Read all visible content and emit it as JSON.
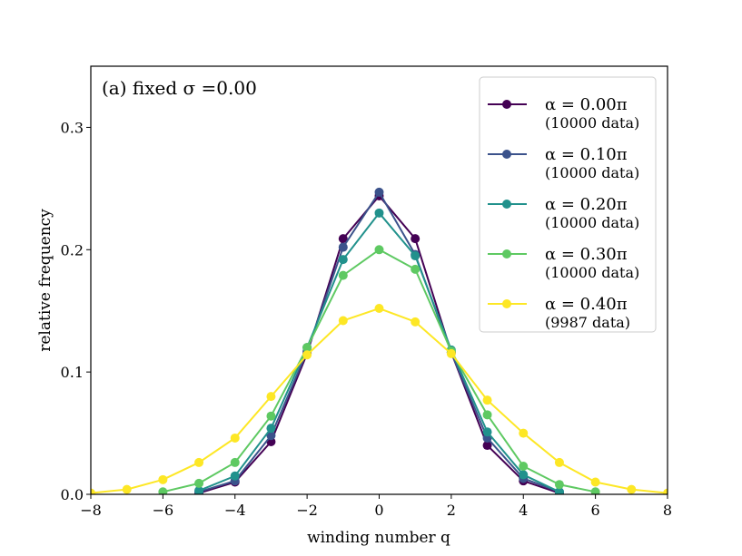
{
  "chart_data": {
    "type": "line",
    "panel_label": "(a) fixed σ =0.00",
    "xlabel": "winding number q",
    "ylabel": "relative frequency",
    "xlim": [
      -8,
      8
    ],
    "ylim": [
      0,
      0.35
    ],
    "xticks": [
      -8,
      -6,
      -4,
      -2,
      0,
      2,
      4,
      6,
      8
    ],
    "xtick_labels": [
      "−8",
      "−6",
      "−4",
      "−2",
      "0",
      "2",
      "4",
      "6",
      "8"
    ],
    "yticks": [
      0.0,
      0.1,
      0.2,
      0.3
    ],
    "ytick_labels": [
      "0.0",
      "0.1",
      "0.2",
      "0.3"
    ],
    "legend_position": "top-right",
    "series": [
      {
        "name": "α = 0.00π",
        "note": "(10000 data)",
        "color": "#440154",
        "x": [
          -5,
          -4,
          -3,
          -2,
          -1,
          0,
          1,
          2,
          3,
          4,
          5
        ],
        "y": [
          0.001,
          0.01,
          0.043,
          0.115,
          0.209,
          0.244,
          0.209,
          0.116,
          0.04,
          0.011,
          0.001
        ]
      },
      {
        "name": "α = 0.10π",
        "note": "(10000 data)",
        "color": "#3b528b",
        "x": [
          -5,
          -4,
          -3,
          -2,
          -1,
          0,
          1,
          2,
          3,
          4,
          5
        ],
        "y": [
          0.002,
          0.011,
          0.048,
          0.117,
          0.202,
          0.247,
          0.196,
          0.116,
          0.046,
          0.013,
          0.002
        ]
      },
      {
        "name": "α = 0.20π",
        "note": "(10000 data)",
        "color": "#21918c",
        "x": [
          -5,
          -4,
          -3,
          -2,
          -1,
          0,
          1,
          2,
          3,
          4,
          5
        ],
        "y": [
          0.003,
          0.015,
          0.054,
          0.12,
          0.192,
          0.23,
          0.195,
          0.118,
          0.051,
          0.016,
          0.002
        ]
      },
      {
        "name": "α = 0.30π",
        "note": "(10000 data)",
        "color": "#5ec962",
        "x": [
          -6,
          -5,
          -4,
          -3,
          -2,
          -1,
          0,
          1,
          2,
          3,
          4,
          5,
          6
        ],
        "y": [
          0.002,
          0.009,
          0.026,
          0.064,
          0.12,
          0.179,
          0.2,
          0.184,
          0.117,
          0.065,
          0.023,
          0.008,
          0.002
        ]
      },
      {
        "name": "α = 0.40π",
        "note": "(9987 data)",
        "color": "#fde725",
        "x": [
          -8,
          -7,
          -6,
          -5,
          -4,
          -3,
          -2,
          -1,
          0,
          1,
          2,
          3,
          4,
          5,
          6,
          7,
          8
        ],
        "y": [
          0.001,
          0.004,
          0.012,
          0.026,
          0.046,
          0.08,
          0.114,
          0.142,
          0.152,
          0.141,
          0.115,
          0.077,
          0.05,
          0.026,
          0.01,
          0.004,
          0.001
        ]
      }
    ]
  }
}
